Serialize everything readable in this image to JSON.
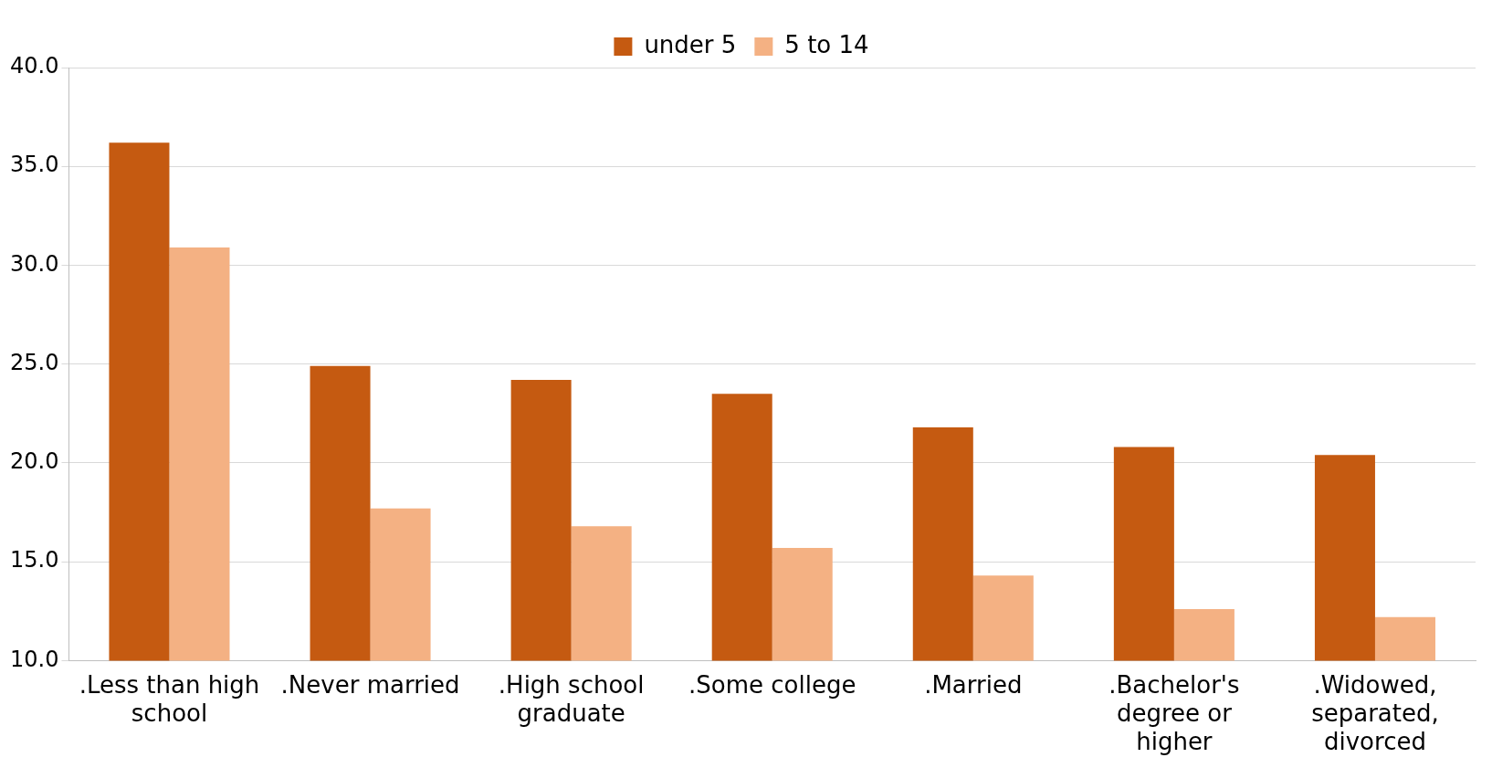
{
  "chart_data": {
    "type": "bar",
    "categories": [
      ".Less than high school",
      ".Never married",
      ".High school graduate",
      ".Some college",
      ".Married",
      ".Bachelor's degree or higher",
      ".Widowed, separated, divorced"
    ],
    "series": [
      {
        "name": "under 5",
        "color": "#c55a11",
        "values": [
          36.2,
          24.9,
          24.2,
          23.5,
          21.8,
          20.8,
          20.4
        ]
      },
      {
        "name": "5 to 14",
        "color": "#f4b183",
        "values": [
          30.9,
          17.7,
          16.8,
          15.7,
          14.3,
          12.6,
          12.2
        ]
      }
    ],
    "ylim": [
      10,
      40
    ],
    "yticks": [
      {
        "value": 10,
        "label": "10.0"
      },
      {
        "value": 15,
        "label": "15.0"
      },
      {
        "value": 20,
        "label": "20.0"
      },
      {
        "value": 25,
        "label": "25.0"
      },
      {
        "value": 30,
        "label": "30.0"
      },
      {
        "value": 35,
        "label": "35.0"
      },
      {
        "value": 40,
        "label": "40.0"
      }
    ],
    "grid": "y",
    "legend": "top"
  }
}
